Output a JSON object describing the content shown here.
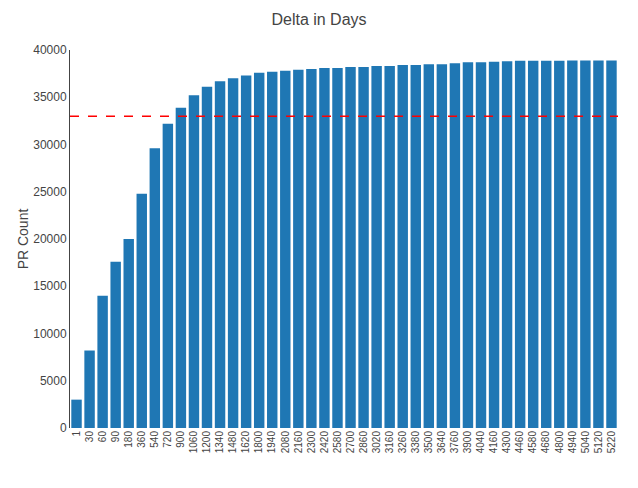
{
  "chart_data": {
    "type": "bar",
    "title": "Delta in Days",
    "ylabel": "PR Count",
    "categories": [
      "1",
      "30",
      "60",
      "90",
      "180",
      "360",
      "540",
      "720",
      "900",
      "1060",
      "1200",
      "1340",
      "1480",
      "1620",
      "1800",
      "1940",
      "2080",
      "2160",
      "2300",
      "2420",
      "2580",
      "2700",
      "2860",
      "3020",
      "3160",
      "3260",
      "3380",
      "3500",
      "3640",
      "3760",
      "3900",
      "4040",
      "4160",
      "4300",
      "4460",
      "4580",
      "4680",
      "4800",
      "4940",
      "5040",
      "5120",
      "5220"
    ],
    "values": [
      3000,
      8200,
      14000,
      17600,
      20000,
      24800,
      29600,
      32200,
      33900,
      35200,
      36100,
      36700,
      37000,
      37300,
      37600,
      37700,
      37800,
      37900,
      38000,
      38100,
      38100,
      38200,
      38200,
      38300,
      38300,
      38400,
      38400,
      38500,
      38500,
      38600,
      38700,
      38700,
      38750,
      38800,
      38850,
      38850,
      38850,
      38850,
      38900,
      38900,
      38900,
      38900
    ],
    "color": "#1f77b4",
    "reference_line": {
      "y": 33000,
      "color": "red",
      "line_style": "dash"
    },
    "ylim": [
      0,
      40000
    ],
    "yticks": [
      0,
      5000,
      10000,
      15000,
      20000,
      25000,
      30000,
      35000,
      40000
    ],
    "grid": false
  }
}
